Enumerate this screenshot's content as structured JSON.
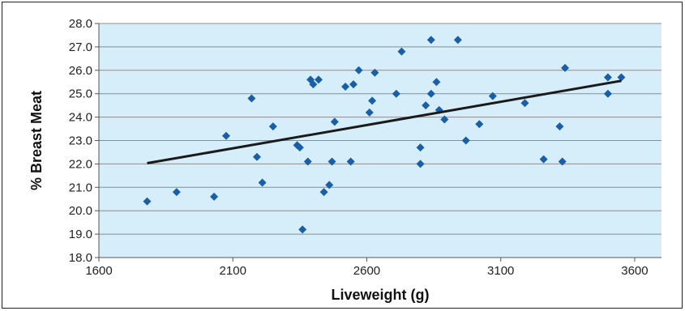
{
  "chart_data": {
    "type": "scatter",
    "title": "",
    "xlabel": "Liveweight (g)",
    "ylabel": "% Breast Meat",
    "xlim": [
      1600,
      3700
    ],
    "ylim": [
      18.0,
      28.0
    ],
    "x_ticks": [
      "1600",
      "2100",
      "2600",
      "3100",
      "3600"
    ],
    "y_ticks": [
      "18.0",
      "19.0",
      "20.0",
      "21.0",
      "22.0",
      "23.0",
      "24.0",
      "25.0",
      "26.0",
      "27.0",
      "28.0"
    ],
    "grid": "horizontal",
    "legend": "none",
    "colors": {
      "plot_background": "#d6eefa",
      "marker": "#1a5ea8",
      "trendline": "#1a1a1a",
      "gridline": "#8c8c8c"
    },
    "series": [
      {
        "marker": "diamond",
        "x": [
          1780,
          1890,
          2030,
          2075,
          2170,
          2190,
          2210,
          2250,
          2340,
          2350,
          2360,
          2380,
          2390,
          2400,
          2420,
          2440,
          2460,
          2470,
          2480,
          2520,
          2540,
          2550,
          2570,
          2610,
          2620,
          2630,
          2710,
          2730,
          2800,
          2800,
          2820,
          2840,
          2840,
          2860,
          2870,
          2890,
          2940,
          2970,
          3020,
          3070,
          3190,
          3260,
          3320,
          3330,
          3340,
          3500,
          3500,
          3550
        ],
        "y": [
          20.4,
          20.8,
          20.6,
          23.2,
          24.8,
          22.3,
          21.2,
          23.6,
          22.8,
          22.7,
          19.2,
          22.1,
          25.6,
          25.4,
          25.6,
          20.8,
          21.1,
          22.1,
          23.8,
          25.3,
          22.1,
          25.4,
          26.0,
          24.2,
          24.7,
          25.9,
          25.0,
          26.8,
          22.0,
          22.7,
          24.5,
          25.0,
          27.3,
          25.5,
          24.3,
          23.9,
          27.3,
          23.0,
          23.7,
          24.9,
          24.6,
          22.2,
          23.6,
          22.1,
          26.1,
          25.7,
          25.0,
          25.7
        ]
      }
    ],
    "trendline": {
      "x": [
        1780,
        3550
      ],
      "y": [
        22.03,
        25.55
      ]
    }
  }
}
